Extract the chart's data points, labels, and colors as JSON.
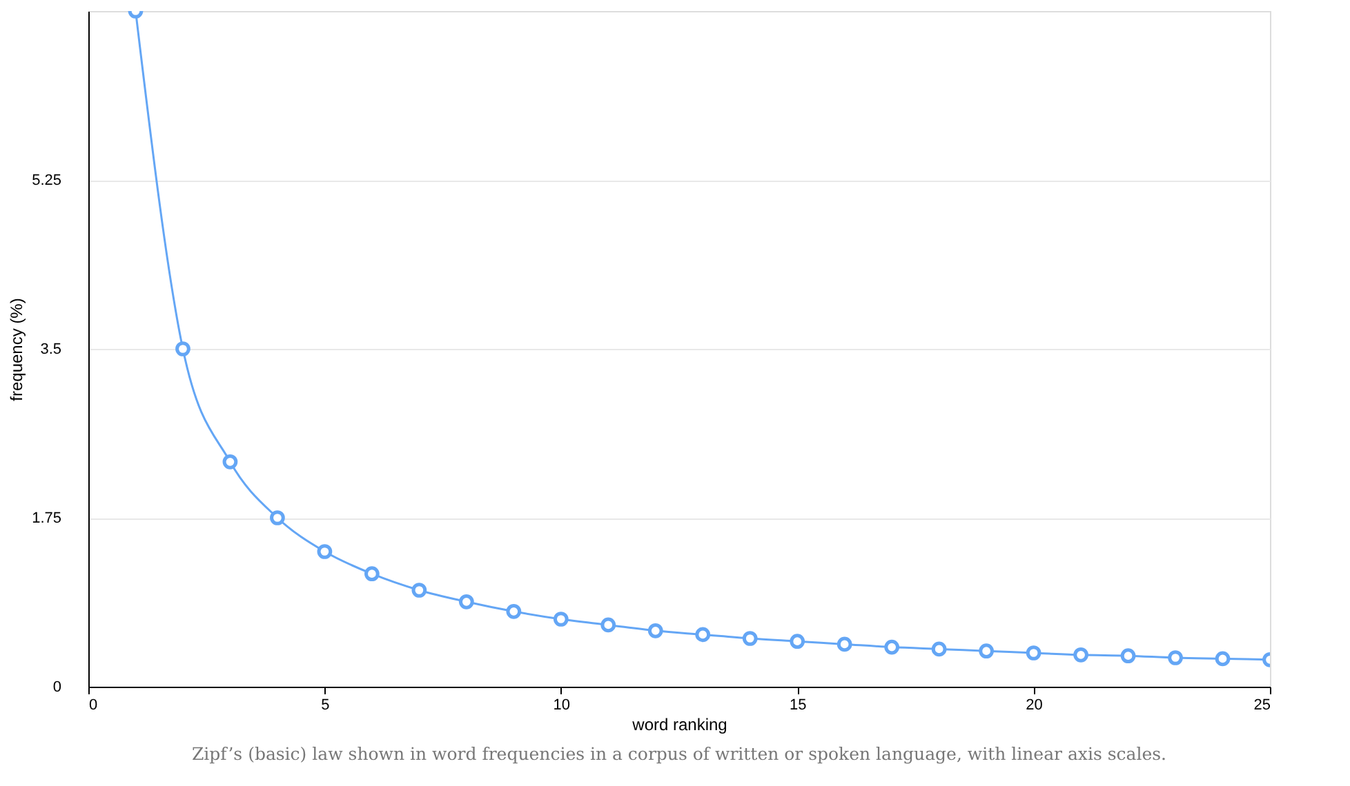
{
  "chart_data": {
    "type": "line",
    "xlabel": "word ranking",
    "ylabel": "frequency (%)",
    "annotations": [
      "Zipf’s (basic) law shown in word frequencies in a corpus of written or spoken language, with linear axis scales."
    ],
    "x": [
      1,
      2,
      3,
      4,
      5,
      6,
      7,
      8,
      9,
      10,
      11,
      12,
      13,
      14,
      15,
      16,
      17,
      18,
      19,
      20,
      21,
      22,
      23,
      24,
      25
    ],
    "series": [
      {
        "color": "#64a6f5",
        "values": [
          7,
          3.5,
          2.33,
          1.75,
          1.4,
          1.17,
          1.0,
          0.88,
          0.78,
          0.7,
          0.64,
          0.58,
          0.54,
          0.5,
          0.47,
          0.44,
          0.41,
          0.39,
          0.37,
          0.35,
          0.33,
          0.32,
          0.3,
          0.29,
          0.28
        ]
      }
    ],
    "xlim": [
      0,
      25
    ],
    "xticks": [
      0,
      5,
      10,
      15,
      20,
      25
    ],
    "ylim": [
      0,
      7
    ],
    "yticks": [
      0,
      1.75,
      3.5,
      5.25
    ],
    "grid": "y",
    "marker": "circle",
    "line_style": "solid"
  }
}
